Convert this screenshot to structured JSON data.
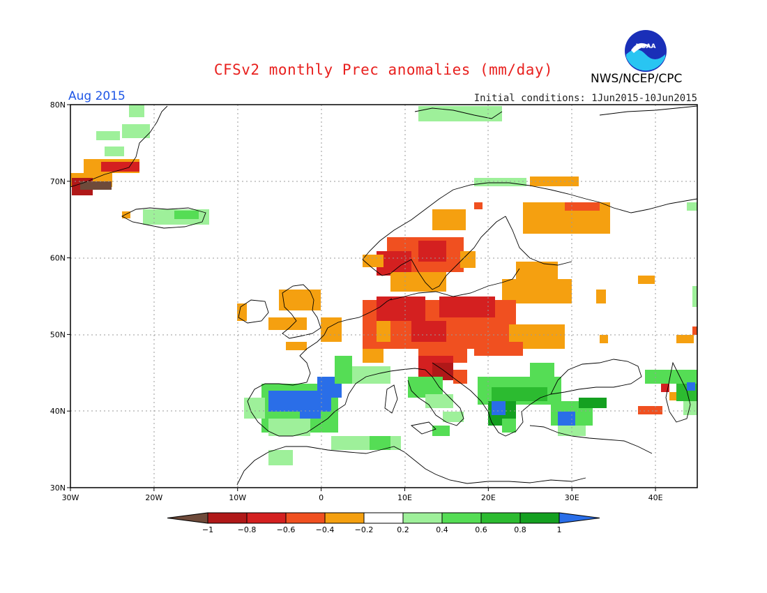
{
  "figure": {
    "title": "CFSv2 monthly Prec anomalies (mm/day)",
    "month_label": "Aug 2015",
    "initial_conditions": "Initial conditions: 1Jun2015-10Jun2015",
    "organization": "NWS/NCEP/CPC",
    "logo_text": "NOAA"
  },
  "map": {
    "lon_range": [
      -30,
      45
    ],
    "lat_range": [
      30,
      80
    ],
    "x_ticks": [
      "30W",
      "20W",
      "10W",
      "0",
      "10E",
      "20E",
      "30E",
      "40E"
    ],
    "y_ticks": [
      "80N",
      "70N",
      "60N",
      "50N",
      "40N",
      "30N"
    ],
    "grid": "dotted"
  },
  "legend": {
    "labels": [
      "-1",
      "-0.8",
      "-0.6",
      "-0.4",
      "-0.2",
      "0.2",
      "0.4",
      "0.6",
      "0.8",
      "1"
    ],
    "colors": [
      "#6e4a3a",
      "#b01818",
      "#d42020",
      "#f05020",
      "#f5a010",
      "#ffffff",
      "#9ef09a",
      "#55dd55",
      "#2cbb30",
      "#14a020",
      "#2a6ee8"
    ]
  }
}
